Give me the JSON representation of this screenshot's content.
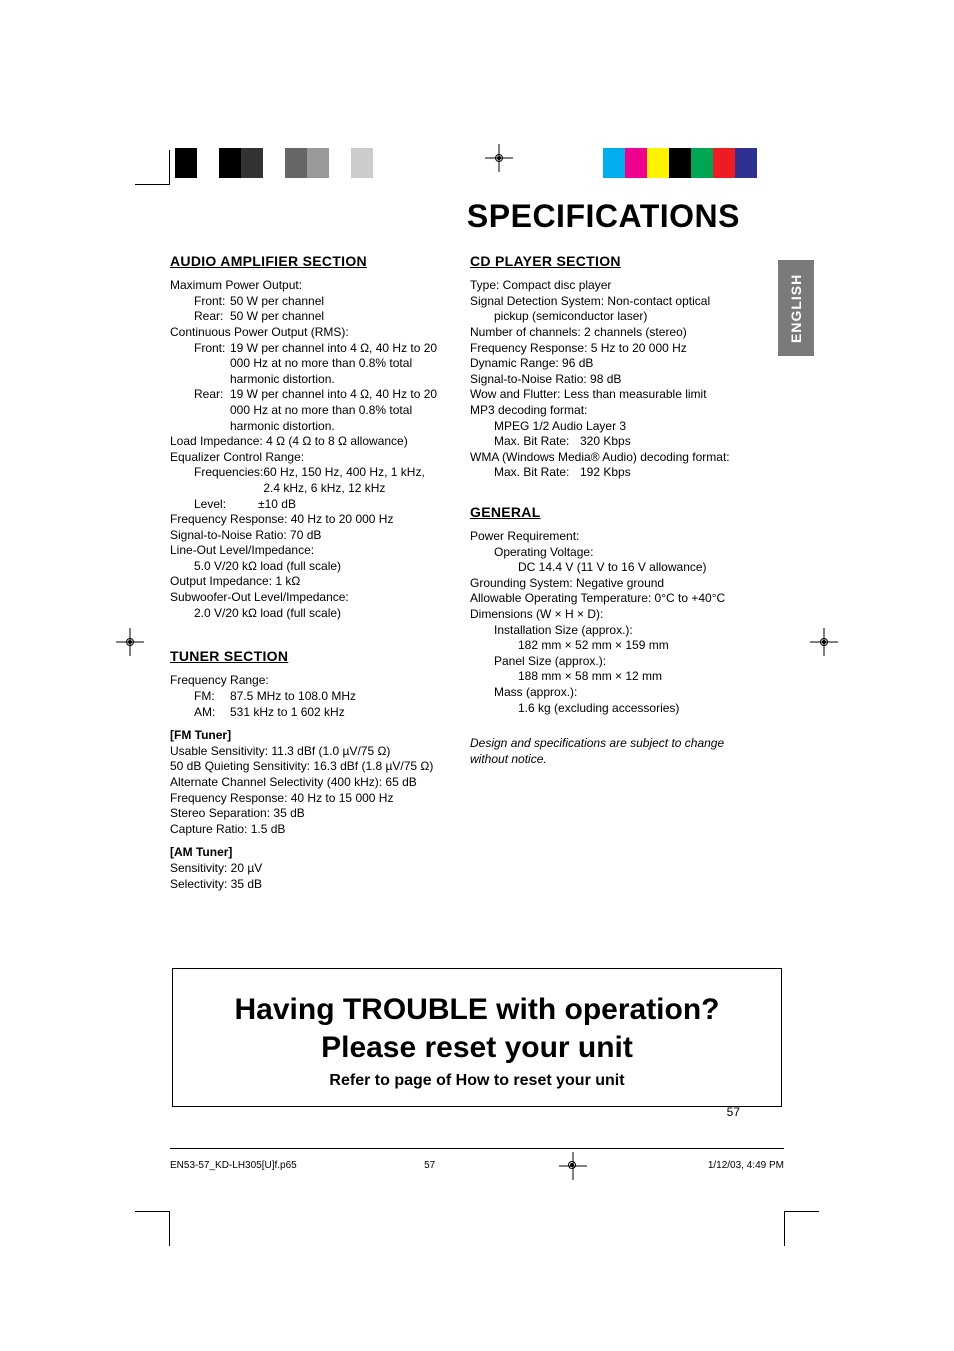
{
  "page": {
    "title": "SPECIFICATIONS",
    "lang_tab": "ENGLISH",
    "page_number": "57",
    "footer_file": "EN53-57_KD-LH305[U]f.p65",
    "footer_page": "57",
    "footer_date": "1/12/03, 4:49 PM"
  },
  "colorbar": {
    "left": [
      "#000000",
      "#ffffff",
      "#000000",
      "#333333",
      "#ffffff",
      "#666666",
      "#999999",
      "#ffffff",
      "#cccccc",
      "#ffffff"
    ],
    "right": [
      "#00aeef",
      "#ec008c",
      "#fff200",
      "#000000",
      "#00a651",
      "#ed1c24",
      "#2e3192",
      "#ffffff"
    ],
    "swatch_w": 22
  },
  "amp": {
    "heading": "AUDIO AMPLIFIER SECTION",
    "max_label": "Maximum Power Output:",
    "front_lbl": "Front:",
    "rear_lbl": "Rear:",
    "max_front": "50 W per channel",
    "max_rear": "50 W per channel",
    "cont_label": "Continuous Power Output (RMS):",
    "cont_front": "19 W per channel into 4 Ω, 40 Hz to 20 000 Hz at no more than 0.8% total harmonic distortion.",
    "cont_rear": "19 W per channel into 4 Ω, 40 Hz to 20 000 Hz at no more than 0.8% total harmonic distortion.",
    "load_imp": "Load Impedance: 4 Ω (4 Ω to 8 Ω allowance)",
    "eq_label": "Equalizer Control Range:",
    "eq_freq_lbl": "Frequencies:",
    "eq_freq": "60 Hz, 150 Hz, 400 Hz, 1 kHz, 2.4 kHz, 6 kHz, 12 kHz",
    "eq_level_lbl": "Level:",
    "eq_level": "±10 dB",
    "freq_resp": "Frequency Response: 40 Hz to 20 000 Hz",
    "snr": "Signal-to-Noise Ratio: 70 dB",
    "lineout_lbl": "Line-Out Level/Impedance:",
    "lineout_val": "5.0 V/20 kΩ load (full scale)",
    "out_imp": "Output Impedance: 1 kΩ",
    "sub_lbl": "Subwoofer-Out Level/Impedance:",
    "sub_val": "2.0 V/20 kΩ load (full scale)"
  },
  "tuner": {
    "heading": "TUNER SECTION",
    "range_lbl": "Frequency Range:",
    "fm_lbl": "FM:",
    "fm_val": "87.5 MHz to 108.0 MHz",
    "am_lbl": "AM:",
    "am_val": "531 kHz to 1 602 kHz",
    "fm_head": "[FM Tuner]",
    "fm_sens": "Usable Sensitivity: 11.3 dBf (1.0 µV/75 Ω)",
    "fm_quiet": "50 dB Quieting Sensitivity: 16.3 dBf (1.8 µV/75 Ω)",
    "fm_alt": "Alternate Channel Selectivity (400 kHz): 65 dB",
    "fm_freq": "Frequency Response: 40 Hz to 15 000 Hz",
    "fm_sep": "Stereo Separation: 35 dB",
    "fm_cap": "Capture Ratio: 1.5 dB",
    "am_head": "[AM Tuner]",
    "am_sens": "Sensitivity: 20 µV",
    "am_sel": "Selectivity: 35 dB"
  },
  "cd": {
    "heading": "CD PLAYER SECTION",
    "type": "Type: Compact disc player",
    "sig_det": "Signal Detection System: Non-contact optical pickup (semiconductor laser)",
    "channels": "Number of channels: 2 channels (stereo)",
    "freq_resp": "Frequency Response: 5 Hz to 20 000 Hz",
    "dyn_range": "Dynamic Range: 96 dB",
    "snr": "Signal-to-Noise Ratio: 98 dB",
    "wow": "Wow and Flutter: Less than measurable limit",
    "mp3_lbl": "MP3 decoding format:",
    "mp3_layer": "MPEG 1/2 Audio Layer 3",
    "mp3_bit_lbl": "Max. Bit Rate:",
    "mp3_bit": "320 Kbps",
    "wma_lbl": "WMA (Windows Media® Audio) decoding format:",
    "wma_bit_lbl": "Max. Bit Rate:",
    "wma_bit": "192 Kbps"
  },
  "general": {
    "heading": "GENERAL",
    "power_lbl": "Power Requirement:",
    "ov_lbl": "Operating Voltage:",
    "ov_val": "DC 14.4 V (11 V to 16 V allowance)",
    "ground": "Grounding System: Negative ground",
    "temp": "Allowable Operating Temperature: 0°C to +40°C",
    "dim_lbl": "Dimensions (W × H × D):",
    "inst_lbl": "Installation Size (approx.):",
    "inst_val": "182 mm × 52 mm × 159 mm",
    "panel_lbl": "Panel Size (approx.):",
    "panel_val": "188 mm × 58 mm × 12 mm",
    "mass_lbl": "Mass (approx.):",
    "mass_val": "1.6 kg (excluding accessories)",
    "note": "Design and specifications are subject to change without notice."
  },
  "trouble": {
    "line1": "Having TROUBLE with operation?",
    "line2": "Please reset your unit",
    "sub": "Refer to page of How to reset your unit"
  }
}
